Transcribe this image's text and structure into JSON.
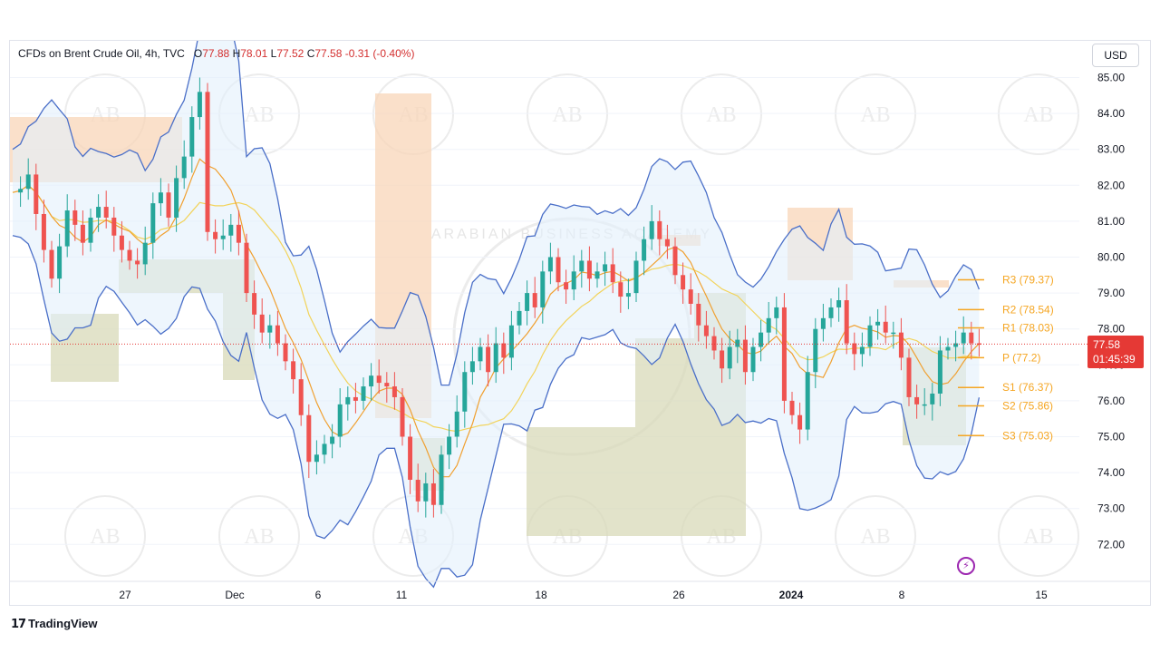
{
  "header": {
    "symbol": "CFDs on Brent Crude Oil, 4h, TVC",
    "open_label": "O",
    "open": "77.88",
    "high_label": "H",
    "high": "78.01",
    "low_label": "L",
    "low": "77.52",
    "close_label": "C",
    "close": "77.58",
    "change": "-0.31 (-0.40%)"
  },
  "currency_button": "USD",
  "price_badge": {
    "price": "77.58",
    "countdown": "01:45:39"
  },
  "brand": "TradingView",
  "watermark": "ARABIAN BUSINESS ACADEMY",
  "colors": {
    "up": "#26a69a",
    "down": "#ef5350",
    "band": "#4a6fc8",
    "basis": "#f0a030",
    "slow_ma": "#f2d35a",
    "pivot": "#f5a623",
    "up_zone": "#f8d5b8",
    "down_zone": "#d8d9b8"
  },
  "chart_data": {
    "type": "candlestick",
    "y_axis": {
      "min": 72,
      "max": 85,
      "ticks": [
        "85.00",
        "84.00",
        "83.00",
        "82.00",
        "81.00",
        "80.00",
        "79.00",
        "78.00",
        "77.00",
        "76.00",
        "75.00",
        "74.00",
        "73.00",
        "72.00"
      ]
    },
    "x_axis": {
      "ticks": [
        "27",
        "Dec",
        "6",
        "11",
        "18",
        "26",
        "2024",
        "8",
        "15"
      ]
    },
    "pivots": [
      {
        "label": "R3 (79.37)",
        "value": 79.37
      },
      {
        "label": "R2 (78.54)",
        "value": 78.54
      },
      {
        "label": "R1 (78.03)",
        "value": 78.03
      },
      {
        "label": "P (77.2)",
        "value": 77.2
      },
      {
        "label": "S1 (76.37)",
        "value": 76.37
      },
      {
        "label": "S2 (75.86)",
        "value": 75.86
      },
      {
        "label": "S3 (75.03)",
        "value": 75.03
      }
    ],
    "last_price": 77.58,
    "price_path": [
      81.8,
      81.9,
      82.3,
      81.2,
      80.2,
      79.4,
      80.3,
      81.3,
      80.9,
      80.4,
      81.1,
      81.4,
      81.1,
      80.6,
      80.2,
      79.9,
      79.8,
      80.4,
      81.5,
      81.8,
      81.1,
      82.2,
      82.8,
      83.9,
      84.6,
      80.7,
      80.5,
      80.6,
      80.9,
      80.4,
      79.0,
      78.4,
      77.9,
      78.1,
      77.6,
      77.1,
      76.6,
      75.6,
      74.3,
      74.5,
      74.8,
      75.0,
      75.9,
      76.1,
      76.0,
      76.4,
      76.7,
      76.5,
      76.4,
      76.1,
      75.0,
      73.8,
      73.2,
      73.7,
      73.1,
      74.5,
      75.0,
      75.7,
      76.8,
      77.1,
      77.5,
      76.8,
      77.6,
      77.2,
      78.1,
      78.5,
      79.0,
      78.6,
      79.6,
      80.0,
      79.3,
      79.1,
      79.6,
      79.9,
      79.4,
      79.6,
      79.8,
      79.3,
      78.9,
      79.0,
      79.9,
      80.5,
      81.0,
      80.5,
      80.3,
      79.5,
      79.1,
      78.7,
      78.1,
      77.8,
      77.4,
      76.9,
      77.5,
      77.7,
      76.8,
      77.5,
      77.9,
      78.3,
      78.6,
      76.0,
      75.6,
      75.2,
      76.8,
      78.0,
      78.3,
      78.6,
      78.8,
      77.6,
      77.3,
      77.5,
      78.1,
      78.2,
      77.9,
      77.9,
      77.2,
      76.1,
      75.9,
      75.9,
      76.2,
      77.4,
      77.5,
      77.6,
      77.9,
      77.6,
      77.58
    ]
  }
}
